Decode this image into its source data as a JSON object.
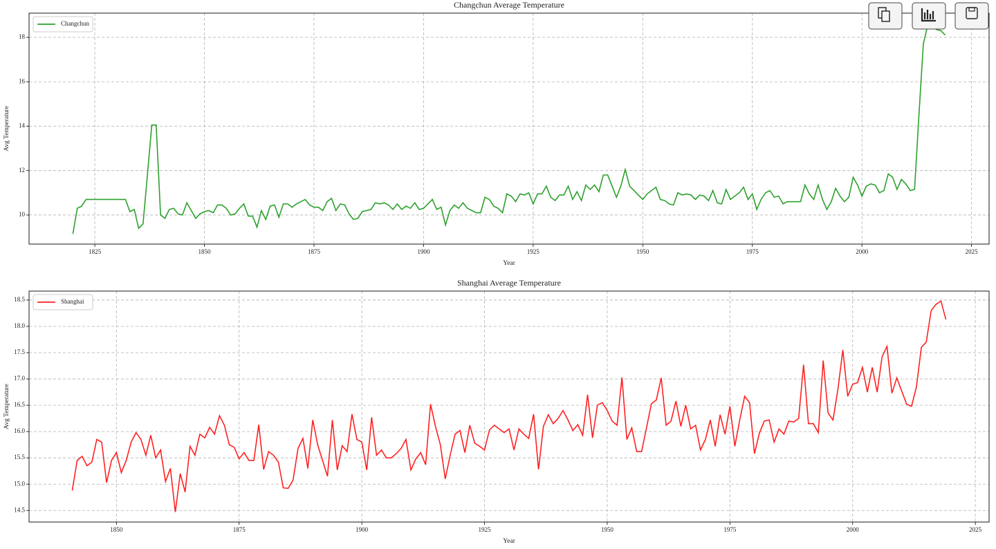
{
  "chart_data": [
    {
      "type": "line",
      "title": "Changchun Average Temperature",
      "xlabel": "Year",
      "ylabel": "Avg Temperature",
      "x": [
        1820,
        1821,
        1822,
        1823,
        1824,
        1825,
        1826,
        1827,
        1828,
        1829,
        1830,
        1831,
        1832,
        1833,
        1834,
        1835,
        1836,
        1837,
        1838,
        1839,
        1840,
        1841,
        1842,
        1843,
        1844,
        1845,
        1846,
        1847,
        1848,
        1849,
        1850,
        1851,
        1852,
        1853,
        1854,
        1855,
        1856,
        1857,
        1858,
        1859,
        1860,
        1861,
        1862,
        1863,
        1864,
        1865,
        1866,
        1867,
        1868,
        1869,
        1870,
        1871,
        1872,
        1873,
        1874,
        1875,
        1876,
        1877,
        1878,
        1879,
        1880,
        1881,
        1882,
        1883,
        1884,
        1885,
        1886,
        1887,
        1888,
        1889,
        1890,
        1891,
        1892,
        1893,
        1894,
        1895,
        1896,
        1897,
        1898,
        1899,
        1900,
        1901,
        1902,
        1903,
        1904,
        1905,
        1906,
        1907,
        1908,
        1909,
        1910,
        1911,
        1912,
        1913,
        1914,
        1915,
        1916,
        1917,
        1918,
        1919,
        1920,
        1921,
        1922,
        1923,
        1924,
        1925,
        1926,
        1927,
        1928,
        1929,
        1930,
        1931,
        1932,
        1933,
        1934,
        1935,
        1936,
        1937,
        1938,
        1939,
        1940,
        1941,
        1942,
        1943,
        1944,
        1945,
        1946,
        1947,
        1948,
        1949,
        1950,
        1951,
        1952,
        1953,
        1954,
        1955,
        1956,
        1957,
        1958,
        1959,
        1960,
        1961,
        1962,
        1963,
        1964,
        1965,
        1966,
        1967,
        1968,
        1969,
        1970,
        1971,
        1972,
        1973,
        1974,
        1975,
        1976,
        1977,
        1978,
        1979,
        1980,
        1981,
        1982,
        1983,
        1984,
        1985,
        1986,
        1987,
        1988,
        1989,
        1990,
        1991,
        1992,
        1993,
        1994,
        1995,
        1996,
        1997,
        1998,
        1999,
        2000,
        2001,
        2002,
        2003,
        2004,
        2005,
        2006,
        2007,
        2008,
        2009,
        2010,
        2011,
        2012,
        2013,
        2014,
        2015,
        2016,
        2017,
        2018,
        2019
      ],
      "series": [
        {
          "name": "Changchun",
          "color": "#2ca02c",
          "values": [
            9.15,
            10.3,
            10.4,
            10.7,
            10.7,
            10.7,
            10.7,
            10.7,
            10.7,
            10.7,
            10.7,
            10.7,
            10.7,
            10.15,
            10.25,
            9.4,
            9.6,
            11.8,
            14.05,
            14.05,
            10.0,
            9.85,
            10.25,
            10.3,
            10.05,
            10.0,
            10.55,
            10.2,
            9.85,
            10.05,
            10.15,
            10.2,
            10.1,
            10.45,
            10.45,
            10.3,
            10.0,
            10.05,
            10.3,
            10.5,
            9.95,
            9.95,
            9.45,
            10.2,
            9.8,
            10.4,
            10.45,
            9.9,
            10.5,
            10.5,
            10.35,
            10.5,
            10.6,
            10.7,
            10.45,
            10.35,
            10.35,
            10.2,
            10.6,
            10.75,
            10.2,
            10.5,
            10.45,
            10.05,
            9.8,
            9.85,
            10.15,
            10.2,
            10.25,
            10.55,
            10.5,
            10.55,
            10.45,
            10.25,
            10.5,
            10.25,
            10.4,
            10.3,
            10.55,
            10.25,
            10.3,
            10.5,
            10.7,
            10.25,
            10.35,
            9.55,
            10.2,
            10.45,
            10.3,
            10.55,
            10.3,
            10.2,
            10.1,
            10.1,
            10.8,
            10.7,
            10.4,
            10.3,
            10.1,
            10.95,
            10.85,
            10.6,
            10.95,
            10.9,
            11.0,
            10.5,
            10.95,
            10.95,
            11.3,
            10.8,
            10.65,
            10.9,
            10.9,
            11.3,
            10.7,
            11.05,
            10.65,
            11.35,
            11.15,
            11.35,
            11.05,
            11.8,
            11.8,
            11.3,
            10.8,
            11.3,
            12.05,
            11.3,
            11.1,
            10.9,
            10.7,
            10.95,
            11.1,
            11.25,
            10.7,
            10.65,
            10.5,
            10.45,
            11.0,
            10.9,
            10.95,
            10.9,
            10.7,
            10.9,
            10.85,
            10.65,
            11.1,
            10.55,
            10.5,
            11.15,
            10.7,
            10.85,
            11.0,
            11.25,
            10.7,
            10.95,
            10.25,
            10.7,
            11.0,
            11.1,
            10.8,
            10.85,
            10.5,
            10.6,
            10.6,
            10.6,
            10.6,
            11.35,
            10.95,
            10.7,
            11.35,
            10.7,
            10.25,
            10.6,
            11.2,
            10.85,
            10.6,
            10.8,
            11.7,
            11.35,
            10.85,
            11.3,
            11.4,
            11.35,
            11.0,
            11.1,
            11.85,
            11.7,
            11.15,
            11.6,
            11.4,
            11.1,
            11.15,
            14.5,
            17.7,
            18.55,
            18.5,
            18.35,
            18.3,
            18.1
          ]
        }
      ],
      "xlim": [
        1810,
        2029
      ],
      "ylim": [
        8.69,
        19.09
      ],
      "xticks": [
        1825,
        1850,
        1875,
        1900,
        1925,
        1950,
        1975,
        2000,
        2025
      ],
      "yticks": [
        10,
        12,
        14,
        16,
        18
      ],
      "grid": true,
      "legend": "upper left"
    },
    {
      "type": "line",
      "title": "Shanghai Average Temperature",
      "xlabel": "Year",
      "ylabel": "Avg Temperature",
      "x": [
        1841,
        1842,
        1843,
        1844,
        1845,
        1846,
        1847,
        1848,
        1849,
        1850,
        1851,
        1852,
        1853,
        1854,
        1855,
        1856,
        1857,
        1858,
        1859,
        1860,
        1861,
        1862,
        1863,
        1864,
        1865,
        1866,
        1867,
        1868,
        1869,
        1870,
        1871,
        1872,
        1873,
        1874,
        1875,
        1876,
        1877,
        1878,
        1879,
        1880,
        1881,
        1882,
        1883,
        1884,
        1885,
        1886,
        1887,
        1888,
        1889,
        1890,
        1891,
        1892,
        1893,
        1894,
        1895,
        1896,
        1897,
        1898,
        1899,
        1900,
        1901,
        1902,
        1903,
        1904,
        1905,
        1906,
        1907,
        1908,
        1909,
        1910,
        1911,
        1912,
        1913,
        1914,
        1915,
        1916,
        1917,
        1918,
        1919,
        1920,
        1921,
        1922,
        1923,
        1924,
        1925,
        1926,
        1927,
        1928,
        1929,
        1930,
        1931,
        1932,
        1933,
        1934,
        1935,
        1936,
        1937,
        1938,
        1939,
        1940,
        1941,
        1942,
        1943,
        1944,
        1945,
        1946,
        1947,
        1948,
        1949,
        1950,
        1951,
        1952,
        1953,
        1954,
        1955,
        1956,
        1957,
        1958,
        1959,
        1960,
        1961,
        1962,
        1963,
        1964,
        1965,
        1966,
        1967,
        1968,
        1969,
        1970,
        1971,
        1972,
        1973,
        1974,
        1975,
        1976,
        1977,
        1978,
        1979,
        1980,
        1981,
        1982,
        1983,
        1984,
        1985,
        1986,
        1987,
        1988,
        1989,
        1990,
        1991,
        1992,
        1993,
        1994,
        1995,
        1996,
        1997,
        1998,
        1999,
        2000,
        2001,
        2002,
        2003,
        2004,
        2005,
        2006,
        2007,
        2008,
        2009,
        2010,
        2011,
        2012,
        2013,
        2014,
        2015,
        2016,
        2017,
        2018,
        2019
      ],
      "series": [
        {
          "name": "Shanghai",
          "color": "#ff2020",
          "values": [
            14.88,
            15.45,
            15.53,
            15.35,
            15.42,
            15.85,
            15.8,
            15.03,
            15.45,
            15.6,
            15.22,
            15.45,
            15.8,
            15.98,
            15.85,
            15.55,
            15.93,
            15.5,
            15.65,
            15.05,
            15.3,
            14.47,
            15.2,
            14.85,
            15.72,
            15.55,
            15.95,
            15.88,
            16.08,
            15.95,
            16.3,
            16.12,
            15.75,
            15.7,
            15.48,
            15.6,
            15.45,
            15.45,
            16.13,
            15.28,
            15.62,
            15.55,
            15.42,
            14.93,
            14.92,
            15.08,
            15.68,
            15.87,
            15.3,
            16.22,
            15.75,
            15.45,
            15.15,
            16.22,
            15.27,
            15.73,
            15.62,
            16.33,
            15.85,
            15.8,
            15.27,
            16.27,
            15.55,
            15.65,
            15.5,
            15.5,
            15.58,
            15.68,
            15.85,
            15.27,
            15.48,
            15.6,
            15.37,
            16.52,
            16.1,
            15.75,
            15.1,
            15.55,
            15.95,
            16.02,
            15.6,
            16.12,
            15.78,
            15.72,
            15.65,
            16.03,
            16.12,
            16.05,
            15.98,
            16.05,
            15.65,
            16.05,
            15.95,
            15.87,
            16.33,
            15.28,
            16.1,
            16.32,
            16.15,
            16.25,
            16.4,
            16.22,
            16.02,
            16.13,
            15.93,
            16.7,
            15.88,
            16.5,
            16.55,
            16.4,
            16.2,
            16.12,
            17.03,
            15.85,
            16.07,
            15.62,
            15.62,
            16.07,
            16.53,
            16.6,
            17.02,
            16.12,
            16.2,
            16.58,
            16.1,
            16.5,
            16.05,
            16.12,
            15.65,
            15.85,
            16.22,
            15.72,
            16.32,
            15.95,
            16.48,
            15.72,
            16.22,
            16.67,
            16.55,
            15.58,
            15.97,
            16.2,
            16.22,
            15.8,
            16.05,
            15.95,
            16.2,
            16.18,
            16.25,
            17.27,
            16.15,
            16.15,
            15.98,
            17.35,
            16.35,
            16.22,
            16.8,
            17.55,
            16.67,
            16.9,
            16.93,
            17.22,
            16.75,
            17.22,
            16.75,
            17.42,
            17.62,
            16.73,
            17.02,
            16.77,
            16.52,
            16.48,
            16.85,
            17.6,
            17.7,
            18.3,
            18.42,
            18.48,
            18.13
          ]
        }
      ],
      "xlim": [
        1832.2,
        2027.8
      ],
      "ylim": [
        14.28,
        18.67
      ],
      "xticks": [
        1850,
        1875,
        1900,
        1925,
        1950,
        1975,
        2000,
        2025
      ],
      "yticks": [
        14.5,
        {
          "value": 15,
          "label": "15.0"
        },
        15.5,
        {
          "value": 16,
          "label": "16.0"
        },
        16.5,
        {
          "value": 17,
          "label": "17.0"
        },
        17.5,
        {
          "value": 18,
          "label": "18.0"
        },
        18.5
      ],
      "grid": true,
      "legend": "upper left"
    }
  ]
}
